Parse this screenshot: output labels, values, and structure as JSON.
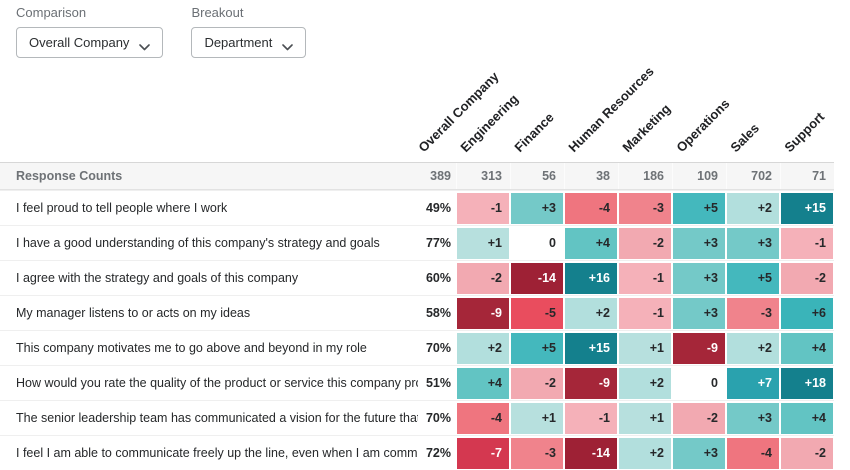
{
  "controls": {
    "comparison_label": "Comparison",
    "comparison_value": "Overall Company",
    "breakout_label": "Breakout",
    "breakout_value": "Department"
  },
  "chart_data": {
    "type": "heatmap",
    "columns": [
      "Overall Company",
      "Engineering",
      "Finance",
      "Human Resources",
      "Marketing",
      "Operations",
      "Sales",
      "Support"
    ],
    "response_counts_label": "Response Counts",
    "response_counts": [
      389,
      313,
      56,
      38,
      186,
      109,
      702,
      71
    ],
    "rows": [
      {
        "label": "I feel proud to tell people where I work",
        "overall": "49%",
        "deltas": [
          -1,
          3,
          -4,
          -3,
          5,
          2,
          15
        ]
      },
      {
        "label": "I have a good understanding of this company's strategy and goals",
        "overall": "77%",
        "deltas": [
          1,
          0,
          4,
          -2,
          3,
          3,
          -1
        ]
      },
      {
        "label": "I agree with the strategy and goals of this company",
        "overall": "60%",
        "deltas": [
          -2,
          -14,
          16,
          -1,
          3,
          5,
          -2
        ]
      },
      {
        "label": "My manager listens to or acts on my ideas",
        "overall": "58%",
        "deltas": [
          -9,
          -5,
          2,
          -1,
          3,
          -3,
          6
        ]
      },
      {
        "label": "This company motivates me to go above and beyond in my role",
        "overall": "70%",
        "deltas": [
          2,
          5,
          15,
          1,
          -9,
          2,
          4
        ]
      },
      {
        "label": "How would you rate the quality of the product or service this company provides to its customers?",
        "overall": "51%",
        "deltas": [
          4,
          -2,
          -9,
          2,
          0,
          7,
          18
        ]
      },
      {
        "label": "The senior leadership team has communicated a vision for the future that motivates me",
        "overall": "70%",
        "deltas": [
          -4,
          1,
          -1,
          1,
          -2,
          3,
          4
        ]
      },
      {
        "label": "I feel I am able to communicate freely up the line, even when I am communicating bad news",
        "overall": "72%",
        "deltas": [
          -7,
          -3,
          -14,
          2,
          3,
          -4,
          -2
        ]
      }
    ],
    "color_scale": {
      "zero": "#ffffff",
      "positive": {
        "1": "#b7e0de",
        "2": "#b2dfdd",
        "3": "#74c9c8",
        "4": "#62c4c3",
        "5": "#44b8bd",
        "6": "#3ab4b9",
        "7": "#2aa2ae",
        "8": "#1b8e9a",
        "15": "#14808d"
      },
      "negative": {
        "1": "#f5b1b9",
        "2": "#f2a9b1",
        "3": "#f0838c",
        "4": "#ef757f",
        "5": "#e94d5e",
        "6": "#e0404f",
        "7": "#d43850",
        "8": "#c02f43",
        "9": "#a52639",
        "10": "#9e2135"
      },
      "white_text_threshold": 7,
      "dark_text_color": "#26282a",
      "light_text_color": "#ffffff"
    }
  }
}
